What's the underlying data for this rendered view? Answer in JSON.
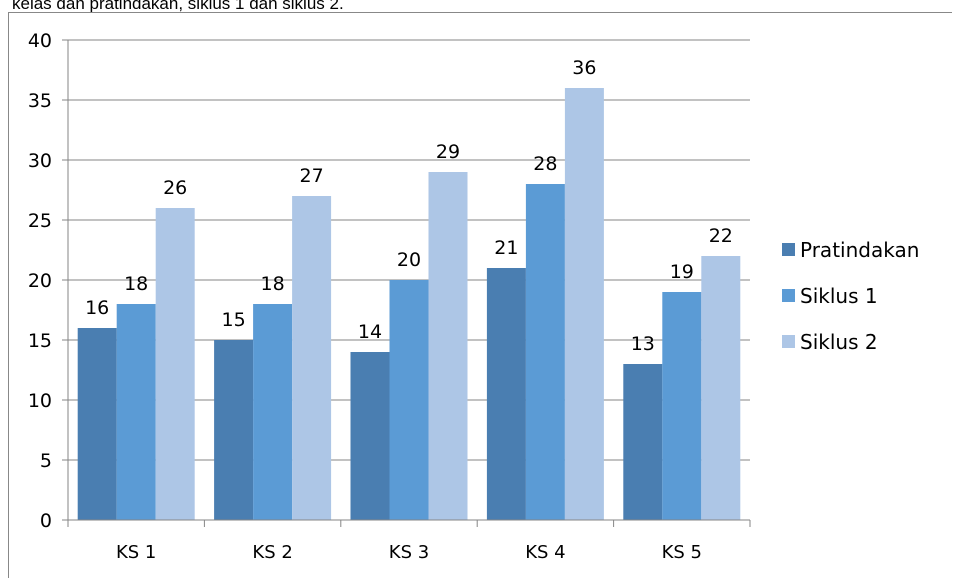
{
  "caption": "kelas dan pratindakan, siklus 1 dan siklus 2.",
  "chart_data": {
    "type": "bar",
    "categories": [
      "KS 1",
      "KS 2",
      "KS 3",
      "KS 4",
      "KS 5"
    ],
    "series": [
      {
        "name": "Pratindakan",
        "values": [
          16,
          15,
          14,
          21,
          13
        ],
        "color": "#4a7eb1"
      },
      {
        "name": "Siklus 1",
        "values": [
          18,
          18,
          20,
          28,
          19
        ],
        "color": "#5b9bd5"
      },
      {
        "name": "Siklus 2",
        "values": [
          26,
          27,
          29,
          36,
          22
        ],
        "color": "#adc6e6"
      }
    ],
    "yticks": [
      "0",
      "5",
      "10",
      "15",
      "20",
      "25",
      "30",
      "35",
      "40"
    ],
    "ylim": [
      0,
      40
    ],
    "grid": true,
    "legend_position": "right",
    "data_labels": true,
    "axis_color": "#868686",
    "grid_color": "#868686"
  }
}
